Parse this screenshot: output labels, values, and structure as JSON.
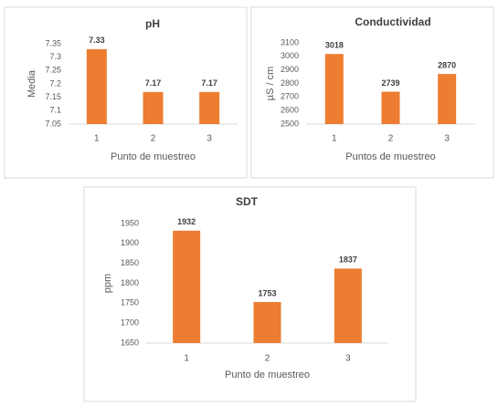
{
  "chart_data": [
    {
      "type": "bar",
      "title": "pH",
      "categories": [
        "1",
        "2",
        "3"
      ],
      "values": [
        7.33,
        7.17,
        7.17
      ],
      "color": "#ed7d31",
      "ylabel": "Media",
      "xlabel": "Punto de muestreo",
      "ylim": [
        7.05,
        7.35
      ],
      "yticks": [
        7.05,
        7.1,
        7.15,
        7.2,
        7.25,
        7.3,
        7.35
      ]
    },
    {
      "type": "bar",
      "title": "Conductividad",
      "categories": [
        "1",
        "2",
        "3"
      ],
      "values": [
        3018,
        2739,
        2870
      ],
      "color": "#ed7d31",
      "ylabel": "µS / cm",
      "xlabel": "Puntos de muestreo",
      "ylim": [
        2500,
        3100
      ],
      "yticks": [
        2500,
        2600,
        2700,
        2800,
        2900,
        3000,
        3100
      ]
    },
    {
      "type": "bar",
      "title": "SDT",
      "categories": [
        "1",
        "2",
        "3"
      ],
      "values": [
        1932,
        1753,
        1837
      ],
      "color": "#ed7d31",
      "ylabel": "ppm",
      "xlabel": "Punto de muestreo",
      "ylim": [
        1650,
        1950
      ],
      "yticks": [
        1650,
        1700,
        1750,
        1800,
        1850,
        1900,
        1950
      ]
    }
  ]
}
